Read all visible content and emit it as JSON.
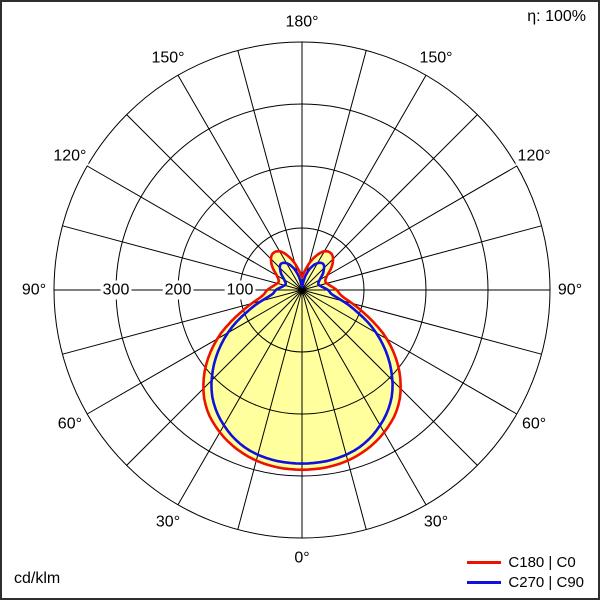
{
  "header": {
    "eta": "η: 100%"
  },
  "footer": {
    "unit": "cd/klm"
  },
  "legend": {
    "items": [
      {
        "label": "C180 | C0",
        "color": "#ee1100"
      },
      {
        "label": "C270 | C90",
        "color": "#1111dd"
      }
    ]
  },
  "chart_data": {
    "type": "polar",
    "subtype": "luminous-intensity-distribution",
    "title": "",
    "unit": "cd/klm",
    "efficiency_label": "η: 100%",
    "grid_on": true,
    "spoke_step_deg": 15,
    "radial_circles": [
      100,
      200,
      300,
      400
    ],
    "radial_axis_labels": [
      {
        "value": 100,
        "text": "100"
      },
      {
        "value": 200,
        "text": "200"
      },
      {
        "value": 300,
        "text": "300"
      }
    ],
    "angle_labels": [
      {
        "theta": 0,
        "text": "0°"
      },
      {
        "theta": 30,
        "text": "30°"
      },
      {
        "theta": -30,
        "text": "30°"
      },
      {
        "theta": 60,
        "text": "60°"
      },
      {
        "theta": -60,
        "text": "60°"
      },
      {
        "theta": 90,
        "text": "90°"
      },
      {
        "theta": -90,
        "text": "90°"
      },
      {
        "theta": 120,
        "text": "120°"
      },
      {
        "theta": -120,
        "text": "120°"
      },
      {
        "theta": 150,
        "text": "150°"
      },
      {
        "theta": -150,
        "text": "150°"
      },
      {
        "theta": 180,
        "text": "180°"
      }
    ],
    "gamma_deg": [
      0,
      10,
      20,
      30,
      40,
      50,
      60,
      70,
      80,
      90,
      100,
      110,
      120,
      130,
      140,
      150,
      160,
      170,
      180
    ],
    "series": [
      {
        "name": "C180 | C0",
        "color": "#ee1100",
        "fill": "#ffff9e",
        "symmetric": true,
        "values": [
          290,
          288,
          280,
          265,
          242,
          205,
          158,
          105,
          68,
          56,
          45,
          40,
          47,
          64,
          75,
          72,
          55,
          34,
          21
        ]
      },
      {
        "name": "C270 | C90",
        "color": "#1111dd",
        "fill": "none",
        "symmetric": true,
        "values": [
          280,
          278,
          270,
          252,
          225,
          185,
          138,
          88,
          52,
          42,
          32,
          28,
          33,
          45,
          54,
          50,
          36,
          16,
          5
        ]
      }
    ]
  }
}
